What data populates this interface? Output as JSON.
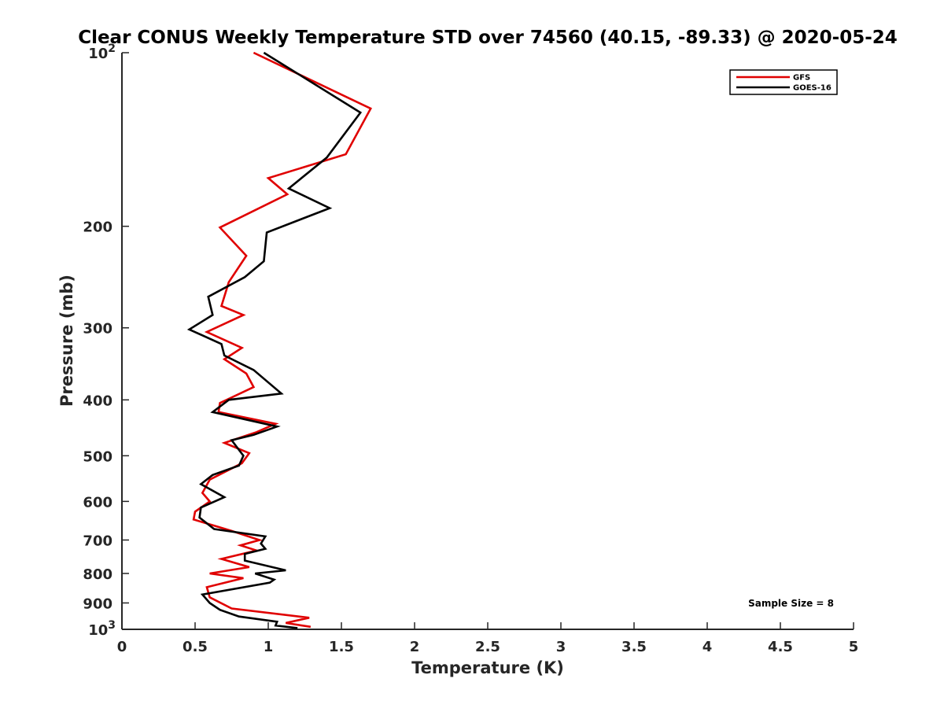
{
  "chart_data": {
    "type": "line",
    "title": "Clear CONUS Weekly Temperature STD over 74560 (40.15, -89.33) @ 2020-05-24",
    "xlabel": "Temperature (K)",
    "ylabel": "Pressure (mb)",
    "xlim": [
      0,
      5
    ],
    "ylim": [
      1000,
      100
    ],
    "y_scale": "log",
    "x_ticks": [
      {
        "value": 0,
        "label": "0"
      },
      {
        "value": 0.5,
        "label": "0.5"
      },
      {
        "value": 1,
        "label": "1"
      },
      {
        "value": 1.5,
        "label": "1.5"
      },
      {
        "value": 2,
        "label": "2"
      },
      {
        "value": 2.5,
        "label": "2.5"
      },
      {
        "value": 3,
        "label": "3"
      },
      {
        "value": 3.5,
        "label": "3.5"
      },
      {
        "value": 4,
        "label": "4"
      },
      {
        "value": 4.5,
        "label": "4.5"
      },
      {
        "value": 5,
        "label": "5"
      }
    ],
    "y_ticks": [
      {
        "value": 100,
        "base": "10",
        "exp": "2"
      },
      {
        "value": 200,
        "label": "200"
      },
      {
        "value": 300,
        "label": "300"
      },
      {
        "value": 400,
        "label": "400"
      },
      {
        "value": 500,
        "label": "500"
      },
      {
        "value": 600,
        "label": "600"
      },
      {
        "value": 700,
        "label": "700"
      },
      {
        "value": 800,
        "label": "800"
      },
      {
        "value": 900,
        "label": "900"
      },
      {
        "value": 1000,
        "base": "10",
        "exp": "3"
      }
    ],
    "grid": false,
    "legend_position": "top-right",
    "annotation": "Sample Size = 8",
    "series": [
      {
        "name": "GFS",
        "color": "#e00000",
        "points": [
          [
            0.9,
            100
          ],
          [
            1.7,
            125
          ],
          [
            1.53,
            150
          ],
          [
            1.0,
            165
          ],
          [
            1.13,
            176
          ],
          [
            0.67,
            201
          ],
          [
            0.85,
            225
          ],
          [
            0.73,
            250
          ],
          [
            0.68,
            275
          ],
          [
            0.83,
            285
          ],
          [
            0.58,
            305
          ],
          [
            0.82,
            325
          ],
          [
            0.7,
            340
          ],
          [
            0.85,
            360
          ],
          [
            0.9,
            380
          ],
          [
            0.67,
            405
          ],
          [
            0.66,
            420
          ],
          [
            1.05,
            440
          ],
          [
            0.92,
            455
          ],
          [
            0.7,
            475
          ],
          [
            0.87,
            495
          ],
          [
            0.82,
            515
          ],
          [
            0.6,
            550
          ],
          [
            0.55,
            580
          ],
          [
            0.6,
            600
          ],
          [
            0.5,
            625
          ],
          [
            0.49,
            645
          ],
          [
            0.75,
            675
          ],
          [
            0.94,
            700
          ],
          [
            0.81,
            715
          ],
          [
            0.92,
            730
          ],
          [
            0.68,
            755
          ],
          [
            0.87,
            780
          ],
          [
            0.6,
            800
          ],
          [
            0.83,
            815
          ],
          [
            0.58,
            845
          ],
          [
            0.6,
            880
          ],
          [
            0.75,
            920
          ],
          [
            1.28,
            955
          ],
          [
            1.12,
            975
          ],
          [
            1.29,
            990
          ]
        ]
      },
      {
        "name": "GOES-16",
        "color": "#000000",
        "points": [
          [
            0.97,
            100
          ],
          [
            1.63,
            127
          ],
          [
            1.4,
            152
          ],
          [
            1.14,
            172
          ],
          [
            1.42,
            186
          ],
          [
            0.99,
            205
          ],
          [
            0.97,
            230
          ],
          [
            0.84,
            245
          ],
          [
            0.59,
            265
          ],
          [
            0.62,
            285
          ],
          [
            0.46,
            302
          ],
          [
            0.68,
            320
          ],
          [
            0.7,
            335
          ],
          [
            0.9,
            355
          ],
          [
            1.09,
            390
          ],
          [
            0.73,
            400
          ],
          [
            0.62,
            420
          ],
          [
            1.06,
            445
          ],
          [
            0.9,
            460
          ],
          [
            0.75,
            470
          ],
          [
            0.83,
            500
          ],
          [
            0.8,
            520
          ],
          [
            0.62,
            540
          ],
          [
            0.54,
            560
          ],
          [
            0.7,
            590
          ],
          [
            0.54,
            615
          ],
          [
            0.53,
            640
          ],
          [
            0.63,
            670
          ],
          [
            0.98,
            690
          ],
          [
            0.95,
            710
          ],
          [
            0.98,
            725
          ],
          [
            0.84,
            740
          ],
          [
            0.84,
            760
          ],
          [
            1.12,
            790
          ],
          [
            0.91,
            800
          ],
          [
            1.04,
            820
          ],
          [
            1.01,
            830
          ],
          [
            0.55,
            870
          ],
          [
            0.6,
            900
          ],
          [
            0.67,
            925
          ],
          [
            0.8,
            950
          ],
          [
            1.06,
            970
          ],
          [
            1.05,
            985
          ],
          [
            1.2,
            995
          ]
        ]
      }
    ]
  }
}
